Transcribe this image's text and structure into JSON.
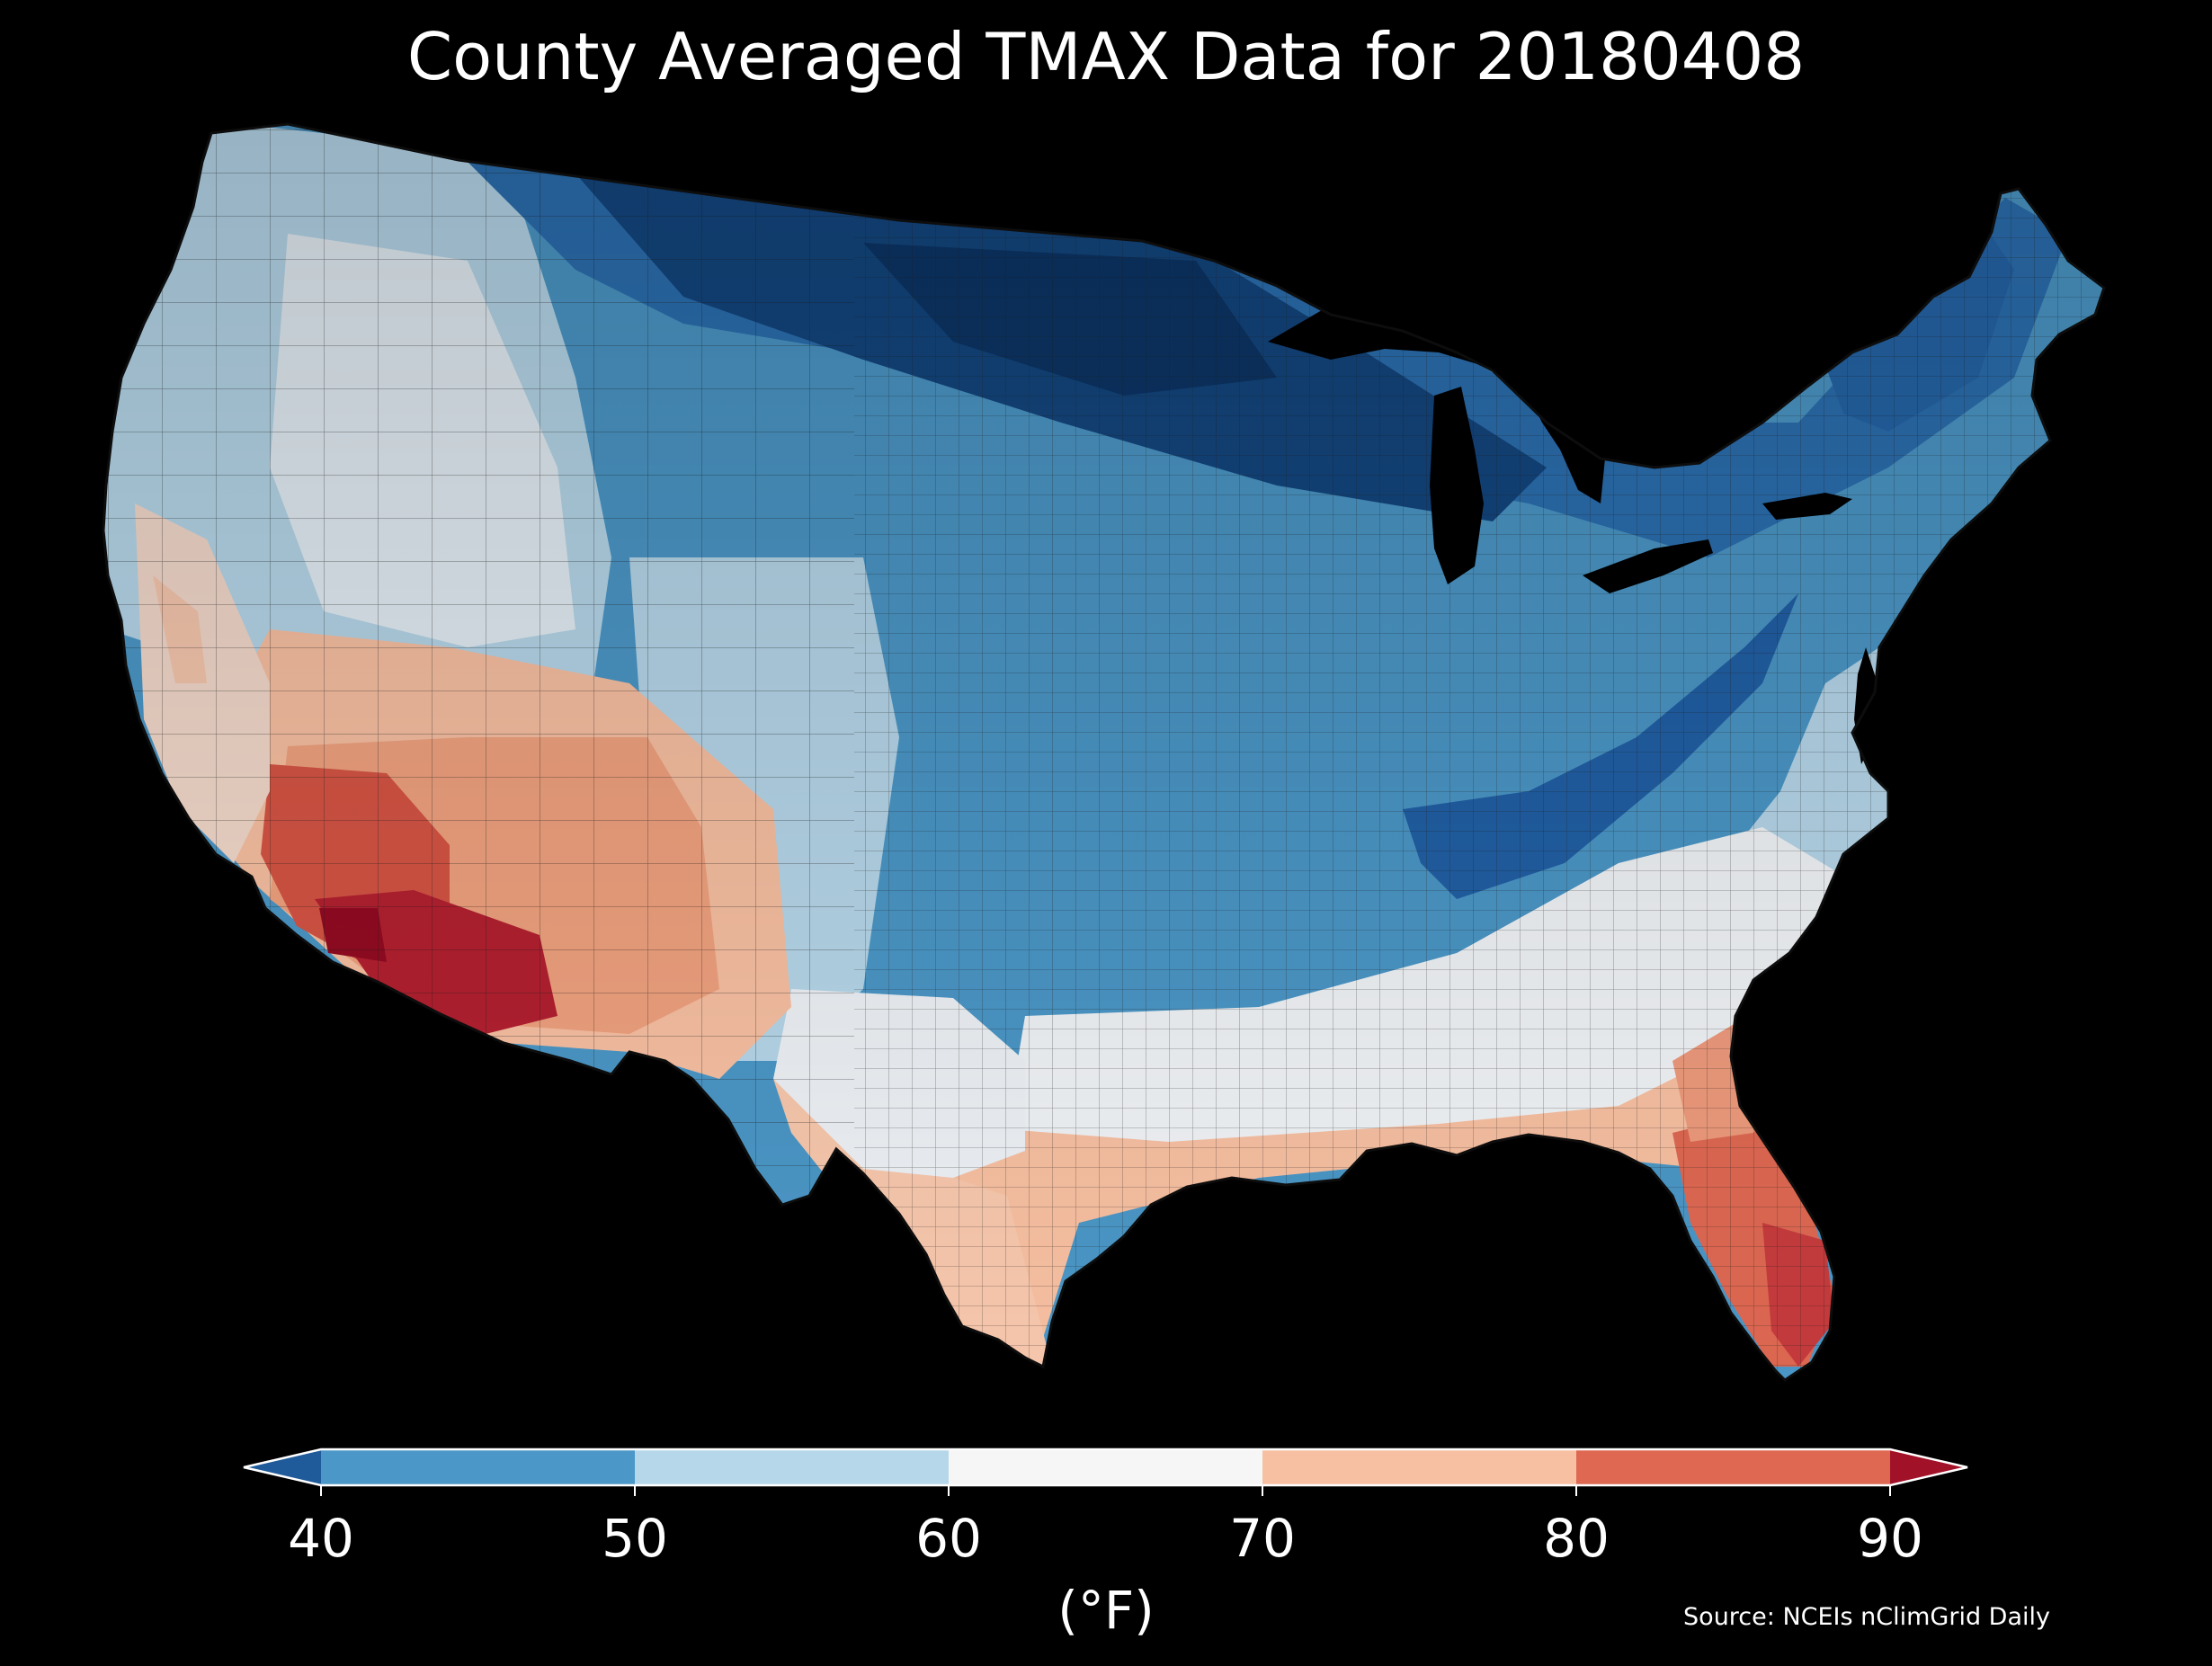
{
  "title": "County Averaged TMAX Data for 20180408",
  "units_label": "(°F)",
  "source": "Source: NCEIs nClimGrid Daily",
  "colorbar": {
    "ticks": [
      "40",
      "50",
      "60",
      "70",
      "80",
      "90"
    ],
    "bins": [
      {
        "range": "<40",
        "color": "#1f5a9a"
      },
      {
        "range": "40-50",
        "color": "#4b97c7"
      },
      {
        "range": "50-60",
        "color": "#b6d7ea"
      },
      {
        "range": "60-70",
        "color": "#f6f6f6"
      },
      {
        "range": "70-80",
        "color": "#f8c0a2"
      },
      {
        "range": "80-90",
        "color": "#de6852"
      },
      {
        "range": ">90",
        "color": "#a11228"
      }
    ]
  },
  "colors": {
    "background": "#000000",
    "text": "#ffffff",
    "county_border": "#1a1a1a"
  }
}
